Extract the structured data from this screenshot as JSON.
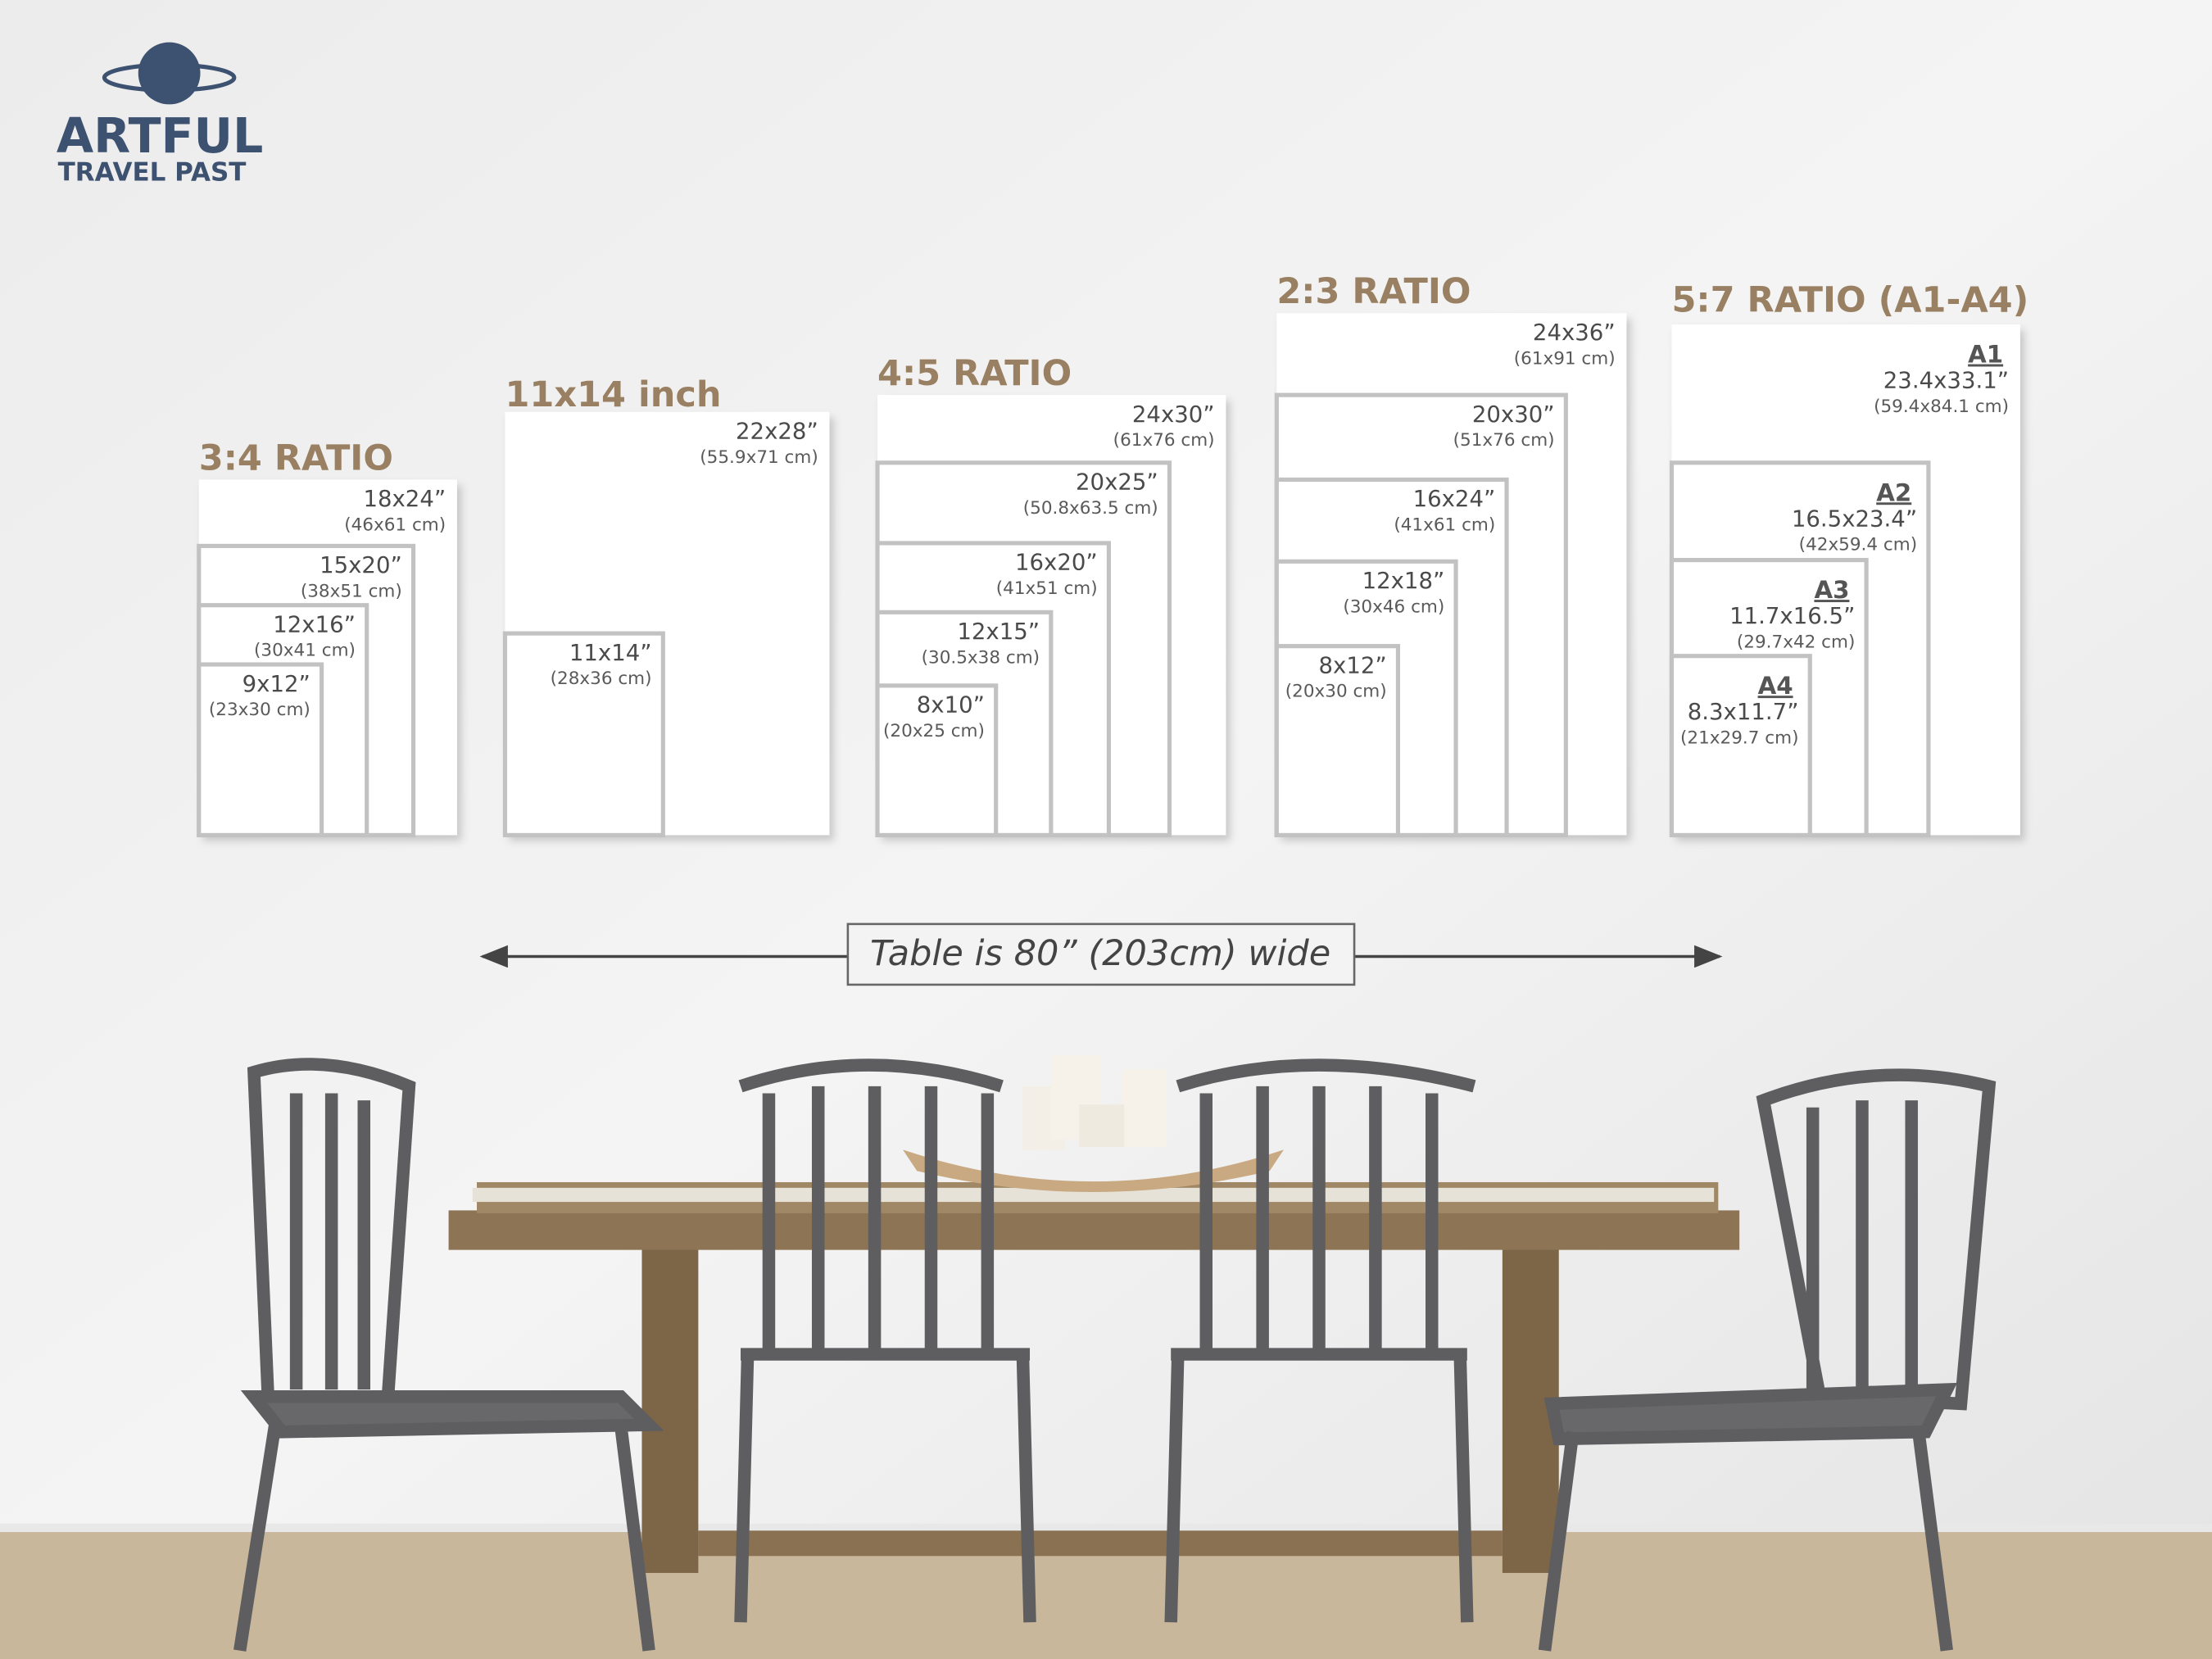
{
  "logo": {
    "name": "ARTFUL",
    "tagline": "TRAVEL PAST"
  },
  "groups": [
    {
      "title": "3:4 RATIO",
      "sizes": [
        {
          "inches": "18x24”",
          "cm": "(46x61 cm)"
        },
        {
          "inches": "15x20”",
          "cm": "(38x51 cm)"
        },
        {
          "inches": "12x16”",
          "cm": "(30x41 cm)"
        },
        {
          "inches": "9x12”",
          "cm": "(23x30 cm)"
        }
      ]
    },
    {
      "title": "11x14 inch",
      "sizes": [
        {
          "inches": "22x28”",
          "cm": "(55.9x71 cm)"
        },
        {
          "inches": "11x14”",
          "cm": "(28x36 cm)"
        }
      ]
    },
    {
      "title": "4:5 RATIO",
      "sizes": [
        {
          "inches": "24x30”",
          "cm": "(61x76 cm)"
        },
        {
          "inches": "20x25”",
          "cm": "(50.8x63.5 cm)"
        },
        {
          "inches": "16x20”",
          "cm": "(41x51 cm)"
        },
        {
          "inches": "12x15”",
          "cm": "(30.5x38 cm)"
        },
        {
          "inches": "8x10”",
          "cm": "(20x25 cm)"
        }
      ]
    },
    {
      "title": "2:3 RATIO",
      "sizes": [
        {
          "inches": "24x36”",
          "cm": "(61x91 cm)"
        },
        {
          "inches": "20x30”",
          "cm": "(51x76 cm)"
        },
        {
          "inches": "16x24”",
          "cm": "(41x61 cm)"
        },
        {
          "inches": "12x18”",
          "cm": "(30x46 cm)"
        },
        {
          "inches": "8x12”",
          "cm": "(20x30 cm)"
        }
      ]
    },
    {
      "title": "5:7 RATIO (A1-A4)",
      "sizes": [
        {
          "paper": "A1",
          "inches": "23.4x33.1”",
          "cm": "(59.4x84.1 cm)"
        },
        {
          "paper": "A2",
          "inches": "16.5x23.4”",
          "cm": "(42x59.4 cm)"
        },
        {
          "paper": "A3",
          "inches": "11.7x16.5”",
          "cm": "(29.7x42 cm)"
        },
        {
          "paper": "A4",
          "inches": "8.3x11.7”",
          "cm": "(21x29.7 cm)"
        }
      ]
    }
  ],
  "note": "Table is 80” (203cm) wide"
}
